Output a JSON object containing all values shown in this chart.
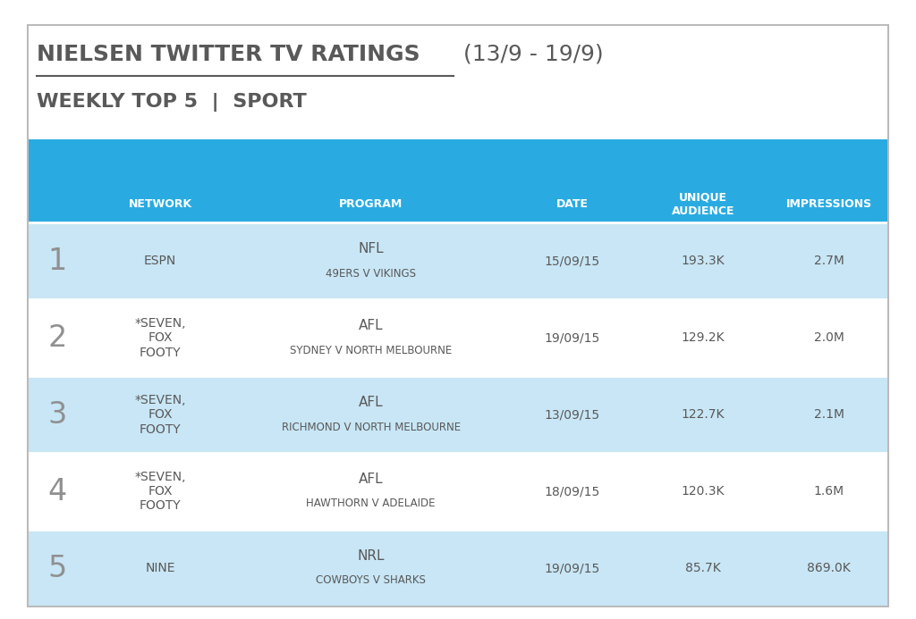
{
  "title_underlined": "NIELSEN TWITTER TV RATINGS",
  "title_rest": "  (13/9 - 19/9)",
  "subtitle": "WEEKLY TOP 5  |  SPORT",
  "header_bg": "#29ABE2",
  "header_text_color": "#FFFFFF",
  "row_bg_odd": "#C8E6F5",
  "row_bg_even": "#FFFFFF",
  "outer_bg": "#FFFFFF",
  "text_color_dark": "#595959",
  "text_color_rank": "#909090",
  "col_headers": [
    "NETWORK",
    "PROGRAM",
    "DATE",
    "UNIQUE\nAUDIENCE",
    "IMPRESSIONS"
  ],
  "rows": [
    {
      "rank": "1",
      "network": "ESPN",
      "program_line1": "NFL",
      "program_line2": "49ERS V VIKINGS",
      "date": "15/09/15",
      "audience": "193.3K",
      "impressions": "2.7M",
      "bg": "#C8E6F5"
    },
    {
      "rank": "2",
      "network": "*SEVEN,\nFOX\nFOOTY",
      "program_line1": "AFL",
      "program_line2": "SYDNEY V NORTH MELBOURNE",
      "date": "19/09/15",
      "audience": "129.2K",
      "impressions": "2.0M",
      "bg": "#FFFFFF"
    },
    {
      "rank": "3",
      "network": "*SEVEN,\nFOX\nFOOTY",
      "program_line1": "AFL",
      "program_line2": "RICHMOND V NORTH MELBOURNE",
      "date": "13/09/15",
      "audience": "122.7K",
      "impressions": "2.1M",
      "bg": "#C8E6F5"
    },
    {
      "rank": "4",
      "network": "*SEVEN,\nFOX\nFOOTY",
      "program_line1": "AFL",
      "program_line2": "HAWTHORN V ADELAIDE",
      "date": "18/09/15",
      "audience": "120.3K",
      "impressions": "1.6M",
      "bg": "#FFFFFF"
    },
    {
      "rank": "5",
      "network": "NINE",
      "program_line1": "NRL",
      "program_line2": "COWBOYS V SHARKS",
      "date": "19/09/15",
      "audience": "85.7K",
      "impressions": "869.0K",
      "bg": "#C8E6F5"
    }
  ]
}
